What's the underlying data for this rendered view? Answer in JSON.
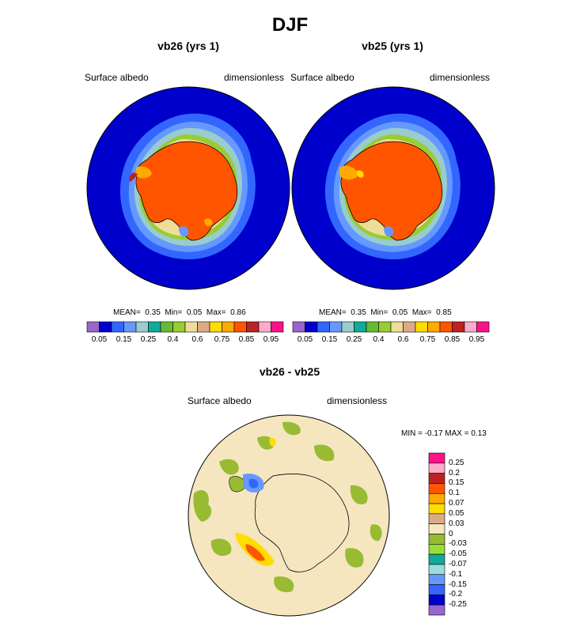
{
  "figure": {
    "title": "DJF"
  },
  "chart_data": [
    {
      "type": "heatmap",
      "projection": "south-polar-stereographic",
      "title": "vb26 (yrs 1)",
      "variable_label": "Surface albedo",
      "units_label": "dimensionless",
      "stats": {
        "mean_label": "MEAN=",
        "mean": "0.35",
        "min_label": "Min=",
        "min": "0.05",
        "max_label": "Max=",
        "max": "0.86"
      },
      "colorbar": {
        "orientation": "horizontal",
        "colors": [
          "#9966cc",
          "#0000cc",
          "#3366ff",
          "#6699ff",
          "#99cccc",
          "#11aa99",
          "#66bb33",
          "#99cc33",
          "#eedd99",
          "#ddaa88",
          "#ffdd00",
          "#ffaa00",
          "#ff5500",
          "#bb2222",
          "#ffaacc",
          "#ff1188"
        ],
        "tick_labels": [
          "0.05",
          "0.15",
          "0.25",
          "0.4",
          "0.6",
          "0.75",
          "0.85",
          "0.95"
        ]
      }
    },
    {
      "type": "heatmap",
      "projection": "south-polar-stereographic",
      "title": "vb25 (yrs 1)",
      "variable_label": "Surface albedo",
      "units_label": "dimensionless",
      "stats": {
        "mean_label": "MEAN=",
        "mean": "0.35",
        "min_label": "Min=",
        "min": "0.05",
        "max_label": "Max=",
        "max": "0.85"
      },
      "colorbar": {
        "orientation": "horizontal",
        "colors": [
          "#9966cc",
          "#0000cc",
          "#3366ff",
          "#6699ff",
          "#99cccc",
          "#11aa99",
          "#66bb33",
          "#99cc33",
          "#eedd99",
          "#ddaa88",
          "#ffdd00",
          "#ffaa00",
          "#ff5500",
          "#bb2222",
          "#ffaacc",
          "#ff1188"
        ],
        "tick_labels": [
          "0.05",
          "0.15",
          "0.25",
          "0.4",
          "0.6",
          "0.75",
          "0.85",
          "0.95"
        ]
      }
    },
    {
      "type": "heatmap",
      "projection": "south-polar-stereographic",
      "title": "vb26 - vb25",
      "variable_label": "Surface albedo",
      "units_label": "dimensionless",
      "stats_text": "MIN =  -0.17 MAX =   0.13",
      "colorbar": {
        "orientation": "vertical",
        "colors_top_to_bottom": [
          "#ff1188",
          "#ffaacc",
          "#bb2222",
          "#ff5500",
          "#ffaa00",
          "#ffdd00",
          "#ddaa88",
          "#f5e6c0",
          "#99bb33",
          "#99dd33",
          "#11aa99",
          "#99dddd",
          "#6699ff",
          "#3366ff",
          "#0000cc",
          "#9966cc"
        ],
        "tick_labels": [
          "0.25",
          "0.2",
          "0.15",
          "0.1",
          "0.07",
          "0.05",
          "0.03",
          "0",
          "-0.03",
          "-0.05",
          "-0.07",
          "-0.1",
          "-0.15",
          "-0.2",
          "-0.25"
        ]
      }
    }
  ]
}
